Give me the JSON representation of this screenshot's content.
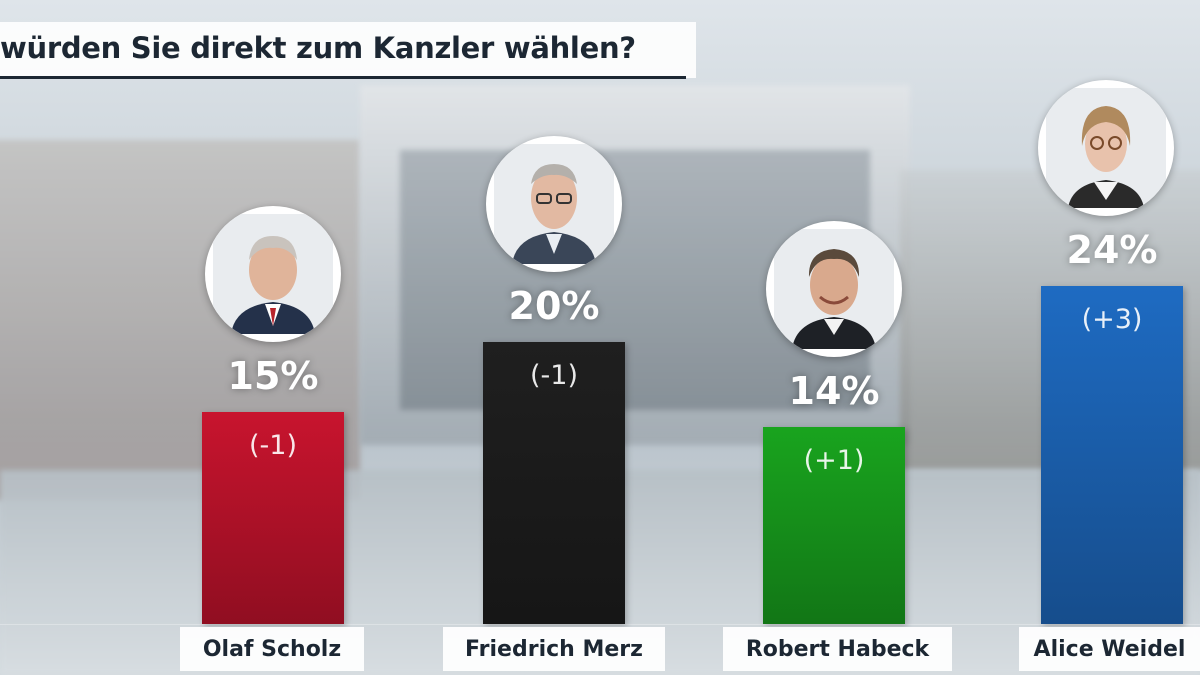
{
  "title": "würden Sie direkt zum Kanzler wählen?",
  "colors": {
    "scholz": "#c8142e",
    "merz": "#1f1f1f",
    "habeck": "#19a41e",
    "weidel": "#1e6bc2"
  },
  "chart_data": {
    "type": "bar",
    "categories": [
      "Olaf Scholz",
      "Friedrich Merz",
      "Robert Habeck",
      "Alice Weidel"
    ],
    "values": [
      15,
      20,
      14,
      24
    ],
    "value_labels": [
      "15%",
      "20%",
      "14%",
      "24%"
    ],
    "changes": [
      "(-1)",
      "(-1)",
      "(+1)",
      "(+3)"
    ],
    "unit": "%",
    "title": "würden Sie direkt zum Kanzler wählen?",
    "grid": false,
    "legend": "none"
  }
}
